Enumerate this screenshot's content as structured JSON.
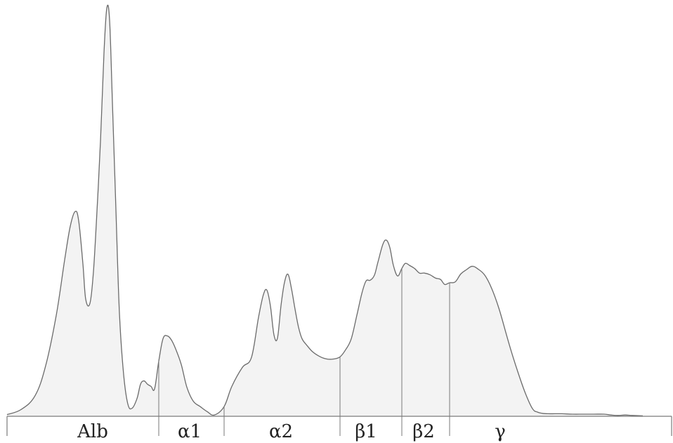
{
  "chart_data": {
    "type": "area",
    "title": "",
    "xlabel": "",
    "ylabel": "",
    "grid": false,
    "legend": "none",
    "xlim": [
      0,
      1000
    ],
    "ylim": [
      0,
      1000
    ],
    "colors": {
      "line": "#6b6b6b",
      "fill": "#f3f3f3",
      "axis": "#7a7a7a"
    },
    "fractions": [
      {
        "label": "Alb",
        "start": 10,
        "end": 226
      },
      {
        "label": "α1",
        "start": 226,
        "end": 319
      },
      {
        "label": "α2",
        "start": 319,
        "end": 484
      },
      {
        "label": "β1",
        "start": 484,
        "end": 572
      },
      {
        "label": "β2",
        "start": 572,
        "end": 640
      },
      {
        "label": "γ",
        "start": 640,
        "end": 958
      }
    ],
    "dividers": [
      226,
      319,
      484,
      572,
      640
    ],
    "curve": {
      "x": [
        10,
        30,
        50,
        65,
        80,
        92,
        100,
        107,
        112,
        118,
        122,
        128,
        133,
        138,
        143,
        148,
        152,
        156,
        160,
        165,
        170,
        176,
        182,
        188,
        195,
        200,
        205,
        210,
        215,
        220,
        226,
        232,
        238,
        244,
        250,
        258,
        266,
        275,
        285,
        295,
        305,
        319,
        330,
        345,
        358,
        368,
        375,
        380,
        385,
        390,
        395,
        400,
        405,
        410,
        415,
        420,
        425,
        430,
        437,
        445,
        455,
        465,
        475,
        484,
        492,
        500,
        508,
        515,
        521,
        527,
        533,
        538,
        545,
        550,
        555,
        560,
        566,
        572,
        577,
        583,
        590,
        597,
        604,
        612,
        620,
        627,
        633,
        640,
        648,
        656,
        664,
        672,
        680,
        690,
        700,
        710,
        720,
        728,
        738,
        748,
        758,
        765,
        772,
        780,
        790,
        800,
        815,
        830,
        845,
        860,
        870,
        880,
        890,
        900,
        915
      ],
      "y": [
        4,
        16,
        49,
        120,
        239,
        371,
        451,
        486,
        464,
        362,
        278,
        268,
        343,
        486,
        652,
        862,
        968,
        940,
        745,
        491,
        245,
        99,
        29,
        19,
        42,
        76,
        84,
        76,
        71,
        65,
        131,
        184,
        191,
        181,
        160,
        123,
        69,
        36,
        23,
        11,
        3,
        23,
        71,
        116,
        140,
        235,
        289,
        299,
        261,
        193,
        186,
        263,
        318,
        337,
        302,
        254,
        211,
        184,
        168,
        153,
        142,
        136,
        136,
        141,
        158,
        184,
        240,
        291,
        321,
        323,
        335,
        366,
        408,
        418,
        400,
        358,
        333,
        351,
        363,
        358,
        351,
        340,
        340,
        336,
        328,
        325,
        313,
        317,
        319,
        338,
        348,
        356,
        350,
        335,
        303,
        257,
        199,
        153,
        101,
        54,
        18,
        10,
        7,
        6,
        6,
        6,
        5,
        5,
        5,
        5,
        3,
        2,
        3,
        2,
        1
      ]
    }
  }
}
